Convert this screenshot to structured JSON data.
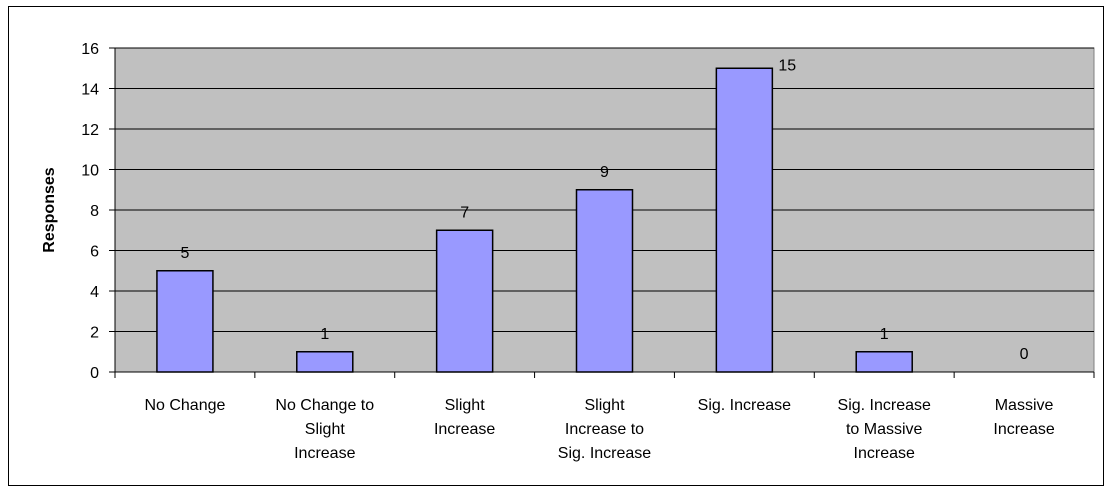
{
  "chart_data": {
    "type": "bar",
    "categories": [
      "No Change",
      "No Change to Slight Increase",
      "Slight Increase",
      "Slight Increase to Sig. Increase",
      "Sig. Increase",
      "Sig. Increase to Massive Increase",
      "Massive Increase"
    ],
    "category_label_lines": [
      [
        "No Change"
      ],
      [
        "No Change to",
        "Slight",
        "Increase"
      ],
      [
        "Slight",
        "Increase"
      ],
      [
        "Slight",
        "Increase to",
        "Sig. Increase"
      ],
      [
        "Sig. Increase"
      ],
      [
        "Sig. Increase",
        "to Massive",
        "Increase"
      ],
      [
        "Massive",
        "Increase"
      ]
    ],
    "values": [
      5,
      1,
      7,
      9,
      15,
      1,
      0
    ],
    "data_labels": [
      "5",
      "1",
      "7",
      "9",
      "15",
      "1",
      "0"
    ],
    "ylabel": "Responses",
    "xlabel": "",
    "title": "",
    "ylim": [
      0,
      16
    ],
    "yticks": [
      0,
      2,
      4,
      6,
      8,
      10,
      12,
      14,
      16
    ],
    "grid": true,
    "legend": "none",
    "colors": {
      "bar_fill": "#9999ff",
      "bar_stroke": "#000000",
      "plot_background": "#c0c0c0",
      "gridline": "#000000"
    }
  }
}
